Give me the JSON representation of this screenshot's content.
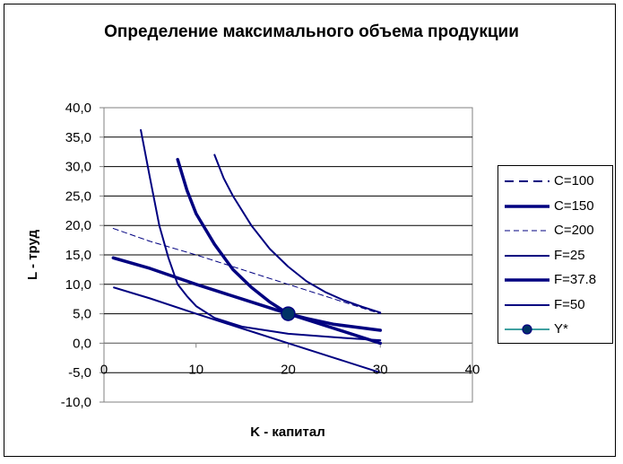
{
  "chart_data": {
    "type": "line",
    "title": "Определение максимального объема продукции",
    "xlabel": "K - капитал",
    "ylabel": "L - труд",
    "xlim": [
      0,
      40
    ],
    "ylim": [
      -10,
      40
    ],
    "x_ticks": [
      "0",
      "10",
      "20",
      "30",
      "40"
    ],
    "y_ticks": [
      "40,0",
      "35,0",
      "30,0",
      "25,0",
      "20,0",
      "15,0",
      "10,0",
      "5,0",
      "0,0",
      "-5,0",
      "-10,0"
    ],
    "grid": "horizontal",
    "legend_position": "right",
    "series": [
      {
        "name": "C=100",
        "style": "dashed",
        "width": 2,
        "color": "#000080",
        "points": [
          [
            1,
            14.5
          ],
          [
            5,
            12.7
          ],
          [
            10,
            10.0
          ],
          [
            15,
            7.5
          ],
          [
            20,
            5.0
          ],
          [
            25,
            2.5
          ],
          [
            30,
            0.0
          ]
        ]
      },
      {
        "name": "C=150",
        "style": "solid",
        "width": 3.5,
        "color": "#000080",
        "points": [
          [
            1,
            14.5
          ],
          [
            5,
            12.7
          ],
          [
            10,
            10.0
          ],
          [
            15,
            7.5
          ],
          [
            20,
            5.0
          ],
          [
            25,
            2.5
          ],
          [
            30,
            0.0
          ]
        ]
      },
      {
        "name": "C=200",
        "style": "dashed-thin",
        "width": 1,
        "color": "#000080",
        "points": [
          [
            1,
            19.5
          ],
          [
            5,
            17.3
          ],
          [
            10,
            15.0
          ],
          [
            15,
            12.5
          ],
          [
            20,
            10.0
          ],
          [
            25,
            7.5
          ],
          [
            30,
            5.0
          ]
        ]
      },
      {
        "name": "F=25",
        "style": "solid",
        "width": 2,
        "color": "#000080",
        "points": [
          [
            4,
            36.2
          ],
          [
            5,
            28.0
          ],
          [
            6,
            20.0
          ],
          [
            7,
            14.5
          ],
          [
            8,
            10.0
          ],
          [
            9,
            8.0
          ],
          [
            10,
            6.3
          ],
          [
            12,
            4.3
          ],
          [
            15,
            2.8
          ],
          [
            20,
            1.6
          ],
          [
            25,
            1.0
          ],
          [
            30,
            0.5
          ]
        ]
      },
      {
        "name": "F=37.8",
        "style": "solid",
        "width": 3.5,
        "color": "#000080",
        "points": [
          [
            8,
            31.2
          ],
          [
            9,
            26.0
          ],
          [
            10,
            22.0
          ],
          [
            12,
            16.8
          ],
          [
            14,
            12.5
          ],
          [
            16,
            9.5
          ],
          [
            18,
            7.0
          ],
          [
            20,
            5.0
          ],
          [
            22,
            4.2
          ],
          [
            25,
            3.2
          ],
          [
            30,
            2.2
          ]
        ]
      },
      {
        "name": "F=50",
        "style": "solid",
        "width": 2,
        "color": "#000080",
        "points": [
          [
            12,
            32.0
          ],
          [
            13,
            28.0
          ],
          [
            14,
            25.0
          ],
          [
            16,
            20.0
          ],
          [
            18,
            16.0
          ],
          [
            20,
            13.0
          ],
          [
            22,
            10.5
          ],
          [
            24,
            8.7
          ],
          [
            26,
            7.3
          ],
          [
            28,
            6.2
          ],
          [
            30,
            5.2
          ]
        ]
      },
      {
        "name": "Y*",
        "style": "marker",
        "color": "#000080",
        "points": [
          [
            20,
            5.0
          ]
        ]
      }
    ],
    "extra_lines": [
      {
        "points": [
          [
            1,
            9.5
          ],
          [
            5,
            7.6
          ],
          [
            10,
            5.0
          ],
          [
            15,
            2.5
          ],
          [
            20,
            0.0
          ],
          [
            25,
            -2.5
          ],
          [
            30,
            -5.0
          ]
        ],
        "width": 2,
        "color": "#000080"
      }
    ]
  }
}
